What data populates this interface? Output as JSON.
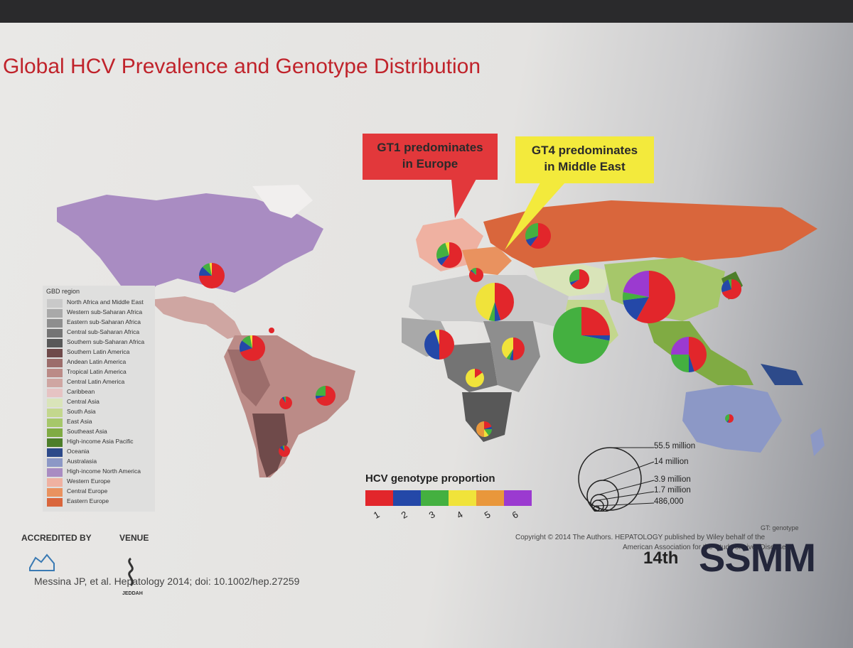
{
  "slide": {
    "title": "Global HCV Prevalence and Genotype Distribution",
    "callouts": {
      "europe": {
        "line1": "GT1 predominates",
        "line2": "in Europe",
        "color": "#e2383b"
      },
      "middle_east": {
        "line1": "GT4 predominates",
        "line2": "in Middle East",
        "color": "#f3ea3c"
      }
    },
    "legend": {
      "title": "GBD region",
      "regions": [
        {
          "label": "North Africa and Middle East",
          "color": "#c9c9c9"
        },
        {
          "label": "Western sub-Saharan Africa",
          "color": "#a9a9a9"
        },
        {
          "label": "Eastern sub-Saharan Africa",
          "color": "#8e8e8e"
        },
        {
          "label": "Central sub-Saharan Africa",
          "color": "#747474"
        },
        {
          "label": "Southern sub-Saharan Africa",
          "color": "#585858"
        },
        {
          "label": "Southern Latin America",
          "color": "#6f4a4a"
        },
        {
          "label": "Andean Latin America",
          "color": "#9c6d6b"
        },
        {
          "label": "Tropical Latin America",
          "color": "#bb8b87"
        },
        {
          "label": "Central Latin America",
          "color": "#cfa6a2"
        },
        {
          "label": "Caribbean",
          "color": "#e6c3c3"
        },
        {
          "label": "Central Asia",
          "color": "#d9e4b9"
        },
        {
          "label": "South Asia",
          "color": "#c3d78d"
        },
        {
          "label": "East Asia",
          "color": "#a6c76a"
        },
        {
          "label": "Southeast Asia",
          "color": "#80ab43"
        },
        {
          "label": "High-income Asia Pacific",
          "color": "#4d7e2a"
        },
        {
          "label": "Oceania",
          "color": "#2d4a8a"
        },
        {
          "label": "Australasia",
          "color": "#8c98c6"
        },
        {
          "label": "High-income North America",
          "color": "#a98cc2"
        },
        {
          "label": "Western Europe",
          "color": "#efb1a1"
        },
        {
          "label": "Central Europe",
          "color": "#e9925f"
        },
        {
          "label": "Eastern Europe",
          "color": "#d9663c"
        }
      ]
    },
    "genotype_legend": {
      "title": "HCV genotype proportion",
      "genotypes": [
        {
          "label": "1",
          "color": "#e2262b"
        },
        {
          "label": "2",
          "color": "#2448a8"
        },
        {
          "label": "3",
          "color": "#44b040"
        },
        {
          "label": "4",
          "color": "#f0e33a"
        },
        {
          "label": "5",
          "color": "#e9973b"
        },
        {
          "label": "6",
          "color": "#9b3ad0"
        }
      ]
    },
    "size_legend": [
      "55.5 million",
      "14 million",
      "3.9 million",
      "1.7 million",
      "486,000"
    ],
    "footer": {
      "accredited": "ACCREDITED BY",
      "venue": "VENUE",
      "venue_city": "JEDDAH",
      "citation": "Messina JP, et al. Hepatology 2014; doi: 10.1002/hep.27259",
      "copyright_line1": "Copyright © 2014 The Authors. HEPATOLOGY published by Wiley behalf of the",
      "copyright_line2": "American Association for the Study of Liver Diseases",
      "gt_note": "GT: genotype",
      "conference_num": "14th",
      "conference_name": "SSMM"
    },
    "map_pies": [
      {
        "region": "High-income North America",
        "shares": [
          0.75,
          0.12,
          0.1,
          0.03,
          0,
          0
        ]
      },
      {
        "region": "Caribbean",
        "shares": [
          1,
          0,
          0,
          0,
          0,
          0
        ]
      },
      {
        "region": "Central Latin America",
        "shares": [
          0.7,
          0.15,
          0.12,
          0.03,
          0,
          0
        ]
      },
      {
        "region": "Tropical Latin America",
        "shares": [
          0.7,
          0.05,
          0.25,
          0,
          0,
          0
        ]
      },
      {
        "region": "Andean Latin America",
        "shares": [
          0.9,
          0.05,
          0.05,
          0,
          0,
          0
        ]
      },
      {
        "region": "Southern Latin America",
        "shares": [
          0.85,
          0.1,
          0.05,
          0,
          0,
          0
        ]
      },
      {
        "region": "Western Europe",
        "shares": [
          0.6,
          0.1,
          0.25,
          0.05,
          0,
          0
        ]
      },
      {
        "region": "Central Europe",
        "shares": [
          0.85,
          0.03,
          0.12,
          0,
          0,
          0
        ]
      },
      {
        "region": "Eastern Europe",
        "shares": [
          0.65,
          0.05,
          0.3,
          0,
          0,
          0
        ]
      },
      {
        "region": "North Africa and Middle East",
        "shares": [
          0.45,
          0.05,
          0.05,
          0.45,
          0,
          0
        ]
      },
      {
        "region": "Western sub-Saharan Africa",
        "shares": [
          0.5,
          0.45,
          0,
          0.05,
          0,
          0
        ]
      },
      {
        "region": "Eastern sub-Saharan Africa",
        "shares": [
          0.5,
          0.05,
          0.05,
          0.4,
          0,
          0
        ]
      },
      {
        "region": "Central sub-Saharan Africa",
        "shares": [
          0.15,
          0,
          0,
          0.85,
          0,
          0
        ]
      },
      {
        "region": "Southern sub-Saharan Africa",
        "shares": [
          0.2,
          0.05,
          0.15,
          0.1,
          0.5,
          0
        ]
      },
      {
        "region": "Central Asia",
        "shares": [
          0.6,
          0.1,
          0.3,
          0,
          0,
          0
        ]
      },
      {
        "region": "South Asia",
        "shares": [
          0.25,
          0.03,
          0.72,
          0,
          0,
          0
        ]
      },
      {
        "region": "East Asia",
        "shares": [
          0.58,
          0.15,
          0.05,
          0,
          0,
          0.22
        ]
      },
      {
        "region": "Southeast Asia",
        "shares": [
          0.45,
          0.05,
          0.25,
          0,
          0,
          0.25
        ]
      },
      {
        "region": "High-income Asia Pacific",
        "shares": [
          0.7,
          0.25,
          0.05,
          0,
          0,
          0
        ]
      },
      {
        "region": "Australasia",
        "shares": [
          0.55,
          0.05,
          0.4,
          0,
          0,
          0
        ]
      }
    ]
  }
}
